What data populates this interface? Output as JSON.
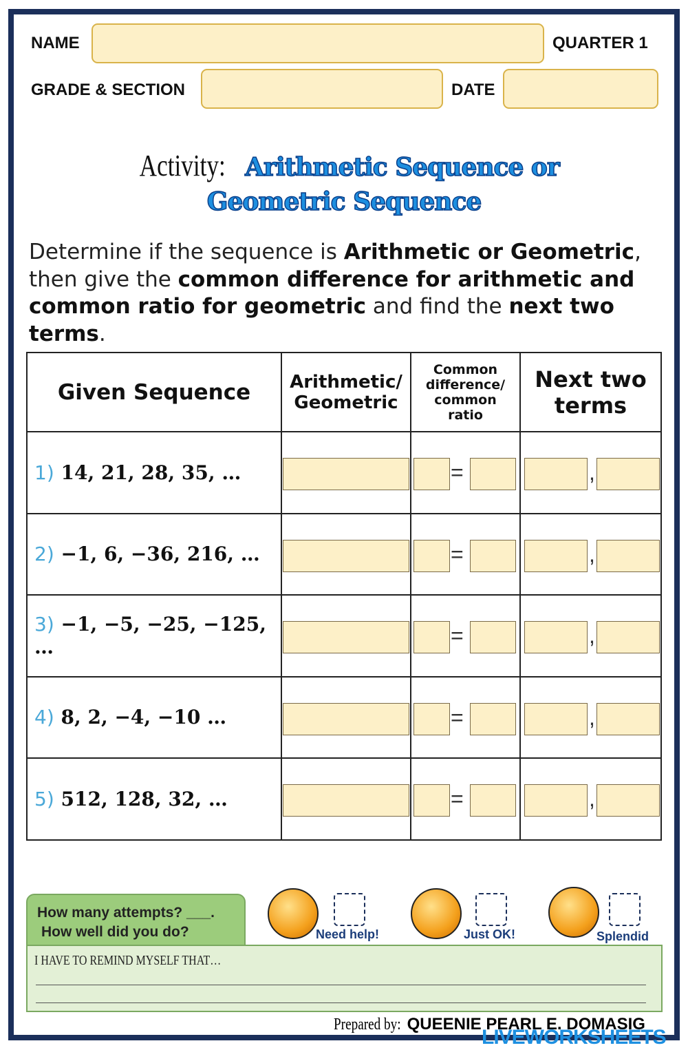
{
  "header": {
    "name_label": "NAME",
    "quarter": "QUARTER 1",
    "grade_label": "GRADE & SECTION",
    "date_label": "DATE"
  },
  "title": {
    "prefix": "Activity:",
    "line1": "Arithmetic Sequence or",
    "line2": "Geometric Sequence"
  },
  "instructions": {
    "p1": "Determine if the sequence is ",
    "b1": "Arithmetic or Geometric",
    ",": ",",
    "p2": " then give the ",
    "b2": "common difference for arithmetic and common ratio for geometric",
    "p3": " and find the ",
    "b3": "next two terms",
    "p4": "."
  },
  "table": {
    "headers": [
      "Given Sequence",
      "Arithmetic/ Geometric",
      "Common difference/ common ratio",
      "Next two terms"
    ],
    "rows": [
      {
        "num": "1)",
        "seq": "14, 21, 28, 35, …"
      },
      {
        "num": "2)",
        "seq": "−1, 6, −36, 216, …"
      },
      {
        "num": "3)",
        "seq": "−1, −5, −25, −125, …"
      },
      {
        "num": "4)",
        "seq": "8, 2, −4,  −10 …"
      },
      {
        "num": "5)",
        "seq": "512, 128, 32, …"
      }
    ],
    "equals": "=",
    "comma": ","
  },
  "reflection": {
    "attempts": "How many attempts? ___.",
    "how_well": "How well did you do?",
    "options": [
      "Need help!",
      "Just OK!",
      "Splendid"
    ],
    "remind": "I HAVE TO REMIND MYSELF THAT…"
  },
  "footer": {
    "prepared_label": "Prepared by:",
    "author": "QUEENIE PEARL E. DOMASIG",
    "watermark": "LIVEWORKSHEETS"
  },
  "colors": {
    "frame": "#1b2f5a",
    "field": "#fdf0c8",
    "title_blue": "#1d8fe0",
    "green": "#9ccc7c"
  }
}
